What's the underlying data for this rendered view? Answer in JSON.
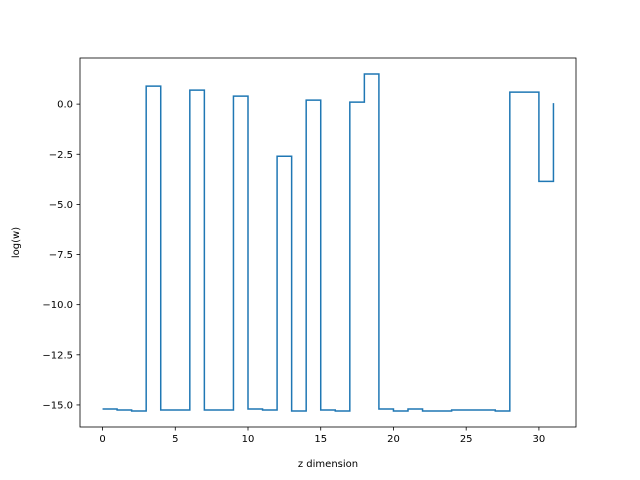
{
  "chart_data": {
    "type": "line",
    "step": "post",
    "xlabel": "z dimension",
    "ylabel": "log(w)",
    "xlim": [
      -1.55,
      32.55
    ],
    "ylim": [
      -16.1,
      2.3
    ],
    "xticks": [
      0,
      5,
      10,
      15,
      20,
      25,
      30
    ],
    "yticks": [
      0.0,
      -2.5,
      -5.0,
      -7.5,
      -10.0,
      -12.5,
      -15.0
    ],
    "ytick_labels": [
      "0.0",
      "−2.5",
      "−5.0",
      "−7.5",
      "−10.0",
      "−12.5",
      "−15.0"
    ],
    "grid": false,
    "series": [
      {
        "color": "#1f77b4",
        "x": [
          0,
          1,
          2,
          3,
          4,
          5,
          6,
          7,
          8,
          9,
          10,
          11,
          12,
          13,
          14,
          15,
          16,
          17,
          18,
          19,
          20,
          21,
          22,
          23,
          24,
          25,
          26,
          27,
          28,
          29,
          30,
          31
        ],
        "y": [
          -15.2,
          -15.25,
          -15.3,
          0.9,
          -15.25,
          -15.25,
          0.7,
          -15.25,
          -15.25,
          0.4,
          -15.2,
          -15.25,
          -2.6,
          -15.3,
          0.2,
          -15.25,
          -15.3,
          0.1,
          1.5,
          -15.2,
          -15.3,
          -15.2,
          -15.3,
          -15.3,
          -15.25,
          -15.25,
          -15.25,
          -15.3,
          0.6,
          0.6,
          -3.85,
          0.05
        ]
      }
    ]
  }
}
